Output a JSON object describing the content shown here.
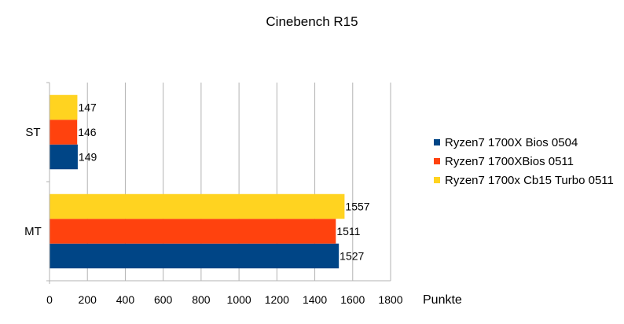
{
  "chart_data": {
    "type": "bar",
    "orientation": "horizontal",
    "title": "Cinebench R15",
    "xlabel": "Punkte",
    "ylabel": "",
    "categories": [
      "ST",
      "MT"
    ],
    "series": [
      {
        "name": "Ryzen7  1700X Bios 0504",
        "color": "#004586",
        "values": [
          149,
          1527
        ]
      },
      {
        "name": "Ryzen7  1700XBios 0511",
        "color": "#ff420e",
        "values": [
          146,
          1511
        ]
      },
      {
        "name": "Ryzen7  1700x Cb15 Turbo 0511",
        "color": "#ffd320",
        "values": [
          147,
          1557
        ]
      }
    ],
    "xlim": [
      0,
      1800
    ],
    "xticks": [
      0,
      200,
      400,
      600,
      800,
      1000,
      1200,
      1400,
      1600,
      1800
    ],
    "grid": "vertical",
    "legend": "right"
  }
}
